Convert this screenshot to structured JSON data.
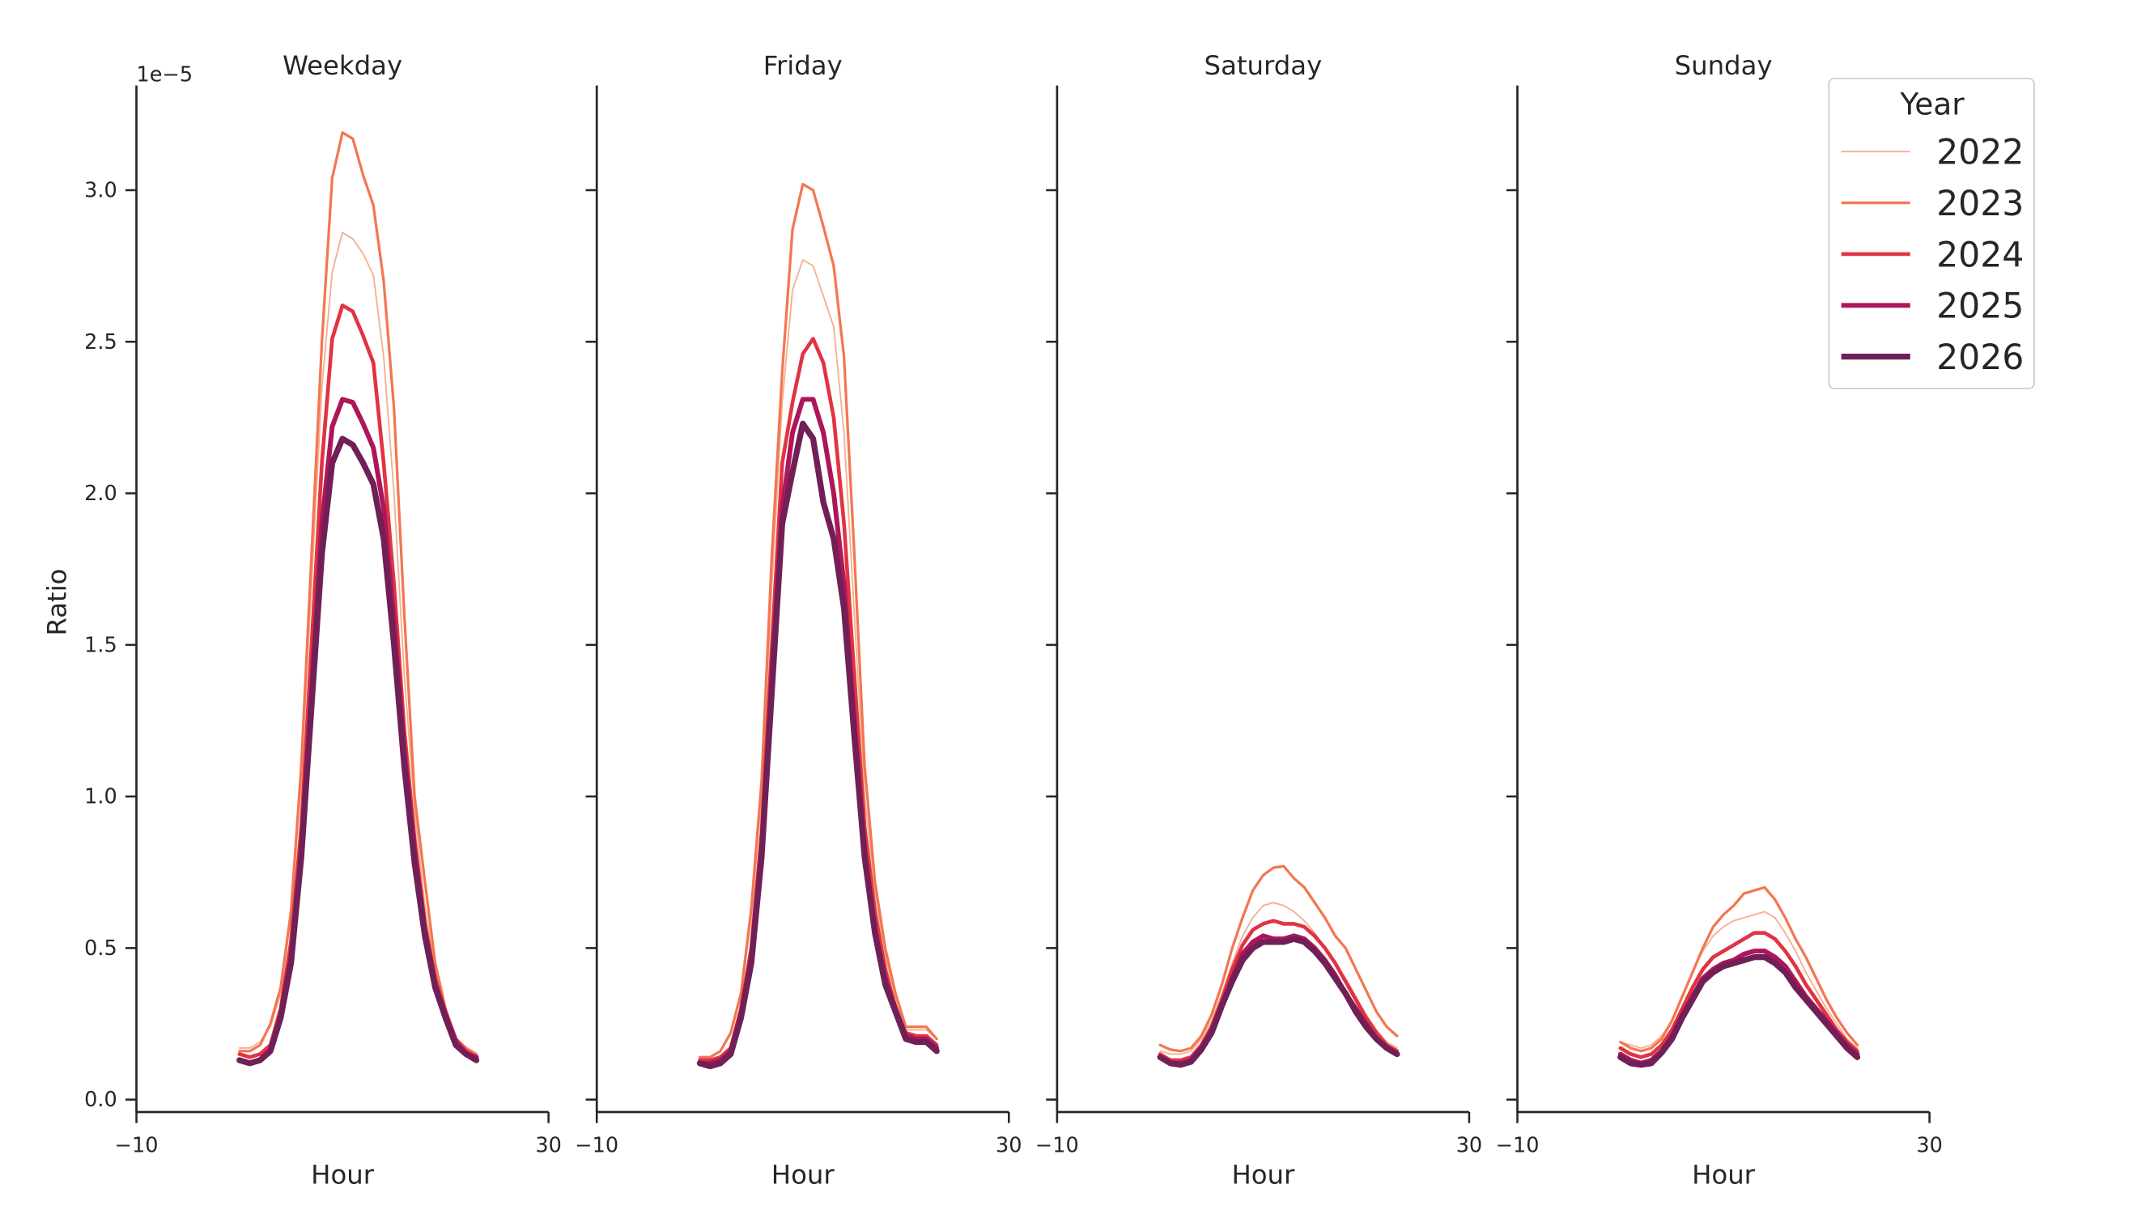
{
  "chart_data": {
    "type": "line",
    "x": [
      0,
      1,
      2,
      3,
      4,
      5,
      6,
      7,
      8,
      9,
      10,
      11,
      12,
      13,
      14,
      15,
      16,
      17,
      18,
      19,
      20,
      21,
      22,
      23
    ],
    "xlabel": "Hour",
    "ylabel": "Ratio",
    "y_offset_text": "1e−5",
    "xlim": [
      -10,
      30
    ],
    "ylim": [
      0,
      3.35
    ],
    "x_ticks": [
      -10,
      30
    ],
    "x_tick_labels": [
      "−10",
      "30"
    ],
    "y_ticks": [
      0,
      0.5,
      1.0,
      1.5,
      2.0,
      2.5,
      3.0
    ],
    "y_tick_labels": [
      "0.0",
      "0.5",
      "1.0",
      "1.5",
      "2.0",
      "2.5",
      "3.0"
    ],
    "grid": false,
    "sharey": true,
    "legend": {
      "title": "Year",
      "placement": "top-right",
      "entries": [
        "2022",
        "2023",
        "2024",
        "2025",
        "2026"
      ]
    },
    "series_style": [
      {
        "name": "2022",
        "color": "#f5b08e",
        "width": 1.1
      },
      {
        "name": "2023",
        "color": "#f37651",
        "width": 1.9
      },
      {
        "name": "2024",
        "color": "#e13342",
        "width": 2.7
      },
      {
        "name": "2025",
        "color": "#ad1759",
        "width": 3.5
      },
      {
        "name": "2026",
        "color": "#701f57",
        "width": 4.3
      }
    ],
    "panels": [
      {
        "title": "Weekday",
        "series": [
          {
            "name": "2022",
            "values": [
              0.17,
              0.17,
              0.19,
              0.24,
              0.35,
              0.6,
              1.05,
              1.7,
              2.35,
              2.73,
              2.86,
              2.84,
              2.79,
              2.72,
              2.45,
              2.0,
              1.4,
              0.95,
              0.64,
              0.43,
              0.3,
              0.2,
              0.17,
              0.15
            ]
          },
          {
            "name": "2023",
            "values": [
              0.16,
              0.16,
              0.18,
              0.25,
              0.37,
              0.62,
              1.1,
              1.8,
              2.5,
              3.04,
              3.19,
              3.17,
              3.05,
              2.95,
              2.7,
              2.28,
              1.6,
              1.0,
              0.72,
              0.45,
              0.3,
              0.2,
              0.17,
              0.15
            ]
          },
          {
            "name": "2024",
            "values": [
              0.15,
              0.14,
              0.15,
              0.18,
              0.3,
              0.52,
              0.9,
              1.5,
              2.1,
              2.51,
              2.62,
              2.6,
              2.52,
              2.43,
              2.1,
              1.7,
              1.22,
              0.86,
              0.58,
              0.4,
              0.29,
              0.2,
              0.16,
              0.14
            ]
          },
          {
            "name": "2025",
            "values": [
              0.13,
              0.12,
              0.13,
              0.16,
              0.28,
              0.47,
              0.82,
              1.35,
              1.9,
              2.22,
              2.31,
              2.3,
              2.23,
              2.15,
              1.95,
              1.58,
              1.15,
              0.82,
              0.56,
              0.38,
              0.28,
              0.19,
              0.15,
              0.14
            ]
          },
          {
            "name": "2026",
            "values": [
              0.13,
              0.12,
              0.13,
              0.16,
              0.27,
              0.45,
              0.8,
              1.3,
              1.8,
              2.1,
              2.18,
              2.16,
              2.1,
              2.03,
              1.85,
              1.5,
              1.1,
              0.78,
              0.54,
              0.37,
              0.27,
              0.18,
              0.15,
              0.13
            ]
          }
        ]
      },
      {
        "title": "Friday",
        "series": [
          {
            "name": "2022",
            "values": [
              0.14,
              0.14,
              0.16,
              0.22,
              0.34,
              0.6,
              1.0,
              1.7,
              2.3,
              2.67,
              2.77,
              2.75,
              2.65,
              2.55,
              2.2,
              1.6,
              1.0,
              0.68,
              0.47,
              0.33,
              0.23,
              0.23,
              0.23,
              0.2
            ]
          },
          {
            "name": "2023",
            "values": [
              0.14,
              0.14,
              0.16,
              0.22,
              0.35,
              0.63,
              1.05,
              1.8,
              2.4,
              2.87,
              3.02,
              3.0,
              2.88,
              2.75,
              2.45,
              1.8,
              1.1,
              0.72,
              0.5,
              0.35,
              0.24,
              0.24,
              0.24,
              0.2
            ]
          },
          {
            "name": "2024",
            "values": [
              0.13,
              0.13,
              0.14,
              0.17,
              0.3,
              0.5,
              0.88,
              1.5,
              2.1,
              2.3,
              2.46,
              2.51,
              2.43,
              2.25,
              1.9,
              1.4,
              0.9,
              0.62,
              0.43,
              0.3,
              0.22,
              0.21,
              0.21,
              0.18
            ]
          },
          {
            "name": "2025",
            "values": [
              0.12,
              0.12,
              0.13,
              0.16,
              0.28,
              0.47,
              0.82,
              1.4,
              1.95,
              2.2,
              2.31,
              2.31,
              2.2,
              2.0,
              1.7,
              1.25,
              0.82,
              0.56,
              0.4,
              0.3,
              0.21,
              0.2,
              0.2,
              0.17
            ]
          },
          {
            "name": "2026",
            "values": [
              0.12,
              0.11,
              0.12,
              0.15,
              0.27,
              0.45,
              0.8,
              1.35,
              1.9,
              2.07,
              2.23,
              2.18,
              1.97,
              1.85,
              1.62,
              1.2,
              0.8,
              0.55,
              0.38,
              0.29,
              0.2,
              0.19,
              0.19,
              0.16
            ]
          }
        ]
      },
      {
        "title": "Saturday",
        "series": [
          {
            "name": "2022",
            "values": [
              0.16,
              0.15,
              0.15,
              0.16,
              0.2,
              0.26,
              0.35,
              0.45,
              0.54,
              0.6,
              0.64,
              0.65,
              0.64,
              0.62,
              0.59,
              0.55,
              0.5,
              0.45,
              0.4,
              0.34,
              0.28,
              0.23,
              0.19,
              0.17
            ]
          },
          {
            "name": "2023",
            "values": [
              0.18,
              0.165,
              0.16,
              0.17,
              0.21,
              0.28,
              0.38,
              0.5,
              0.6,
              0.69,
              0.74,
              0.765,
              0.77,
              0.73,
              0.7,
              0.65,
              0.6,
              0.54,
              0.5,
              0.43,
              0.36,
              0.29,
              0.24,
              0.21
            ]
          },
          {
            "name": "2024",
            "values": [
              0.15,
              0.13,
              0.13,
              0.14,
              0.18,
              0.24,
              0.33,
              0.43,
              0.51,
              0.56,
              0.58,
              0.59,
              0.58,
              0.58,
              0.57,
              0.54,
              0.5,
              0.45,
              0.39,
              0.33,
              0.27,
              0.22,
              0.18,
              0.16
            ]
          },
          {
            "name": "2025",
            "values": [
              0.14,
              0.12,
              0.12,
              0.13,
              0.17,
              0.23,
              0.31,
              0.4,
              0.48,
              0.52,
              0.54,
              0.53,
              0.53,
              0.54,
              0.53,
              0.5,
              0.46,
              0.41,
              0.35,
              0.3,
              0.25,
              0.2,
              0.17,
              0.15
            ]
          },
          {
            "name": "2026",
            "values": [
              0.14,
              0.12,
              0.115,
              0.125,
              0.165,
              0.22,
              0.31,
              0.39,
              0.46,
              0.5,
              0.52,
              0.52,
              0.52,
              0.53,
              0.52,
              0.49,
              0.45,
              0.4,
              0.35,
              0.29,
              0.24,
              0.2,
              0.17,
              0.15
            ]
          }
        ]
      },
      {
        "title": "Sunday",
        "series": [
          {
            "name": "2022",
            "values": [
              0.19,
              0.18,
              0.17,
              0.18,
              0.21,
              0.26,
              0.34,
              0.42,
              0.49,
              0.54,
              0.57,
              0.59,
              0.6,
              0.61,
              0.62,
              0.6,
              0.55,
              0.49,
              0.42,
              0.36,
              0.3,
              0.25,
              0.2,
              0.17
            ]
          },
          {
            "name": "2023",
            "values": [
              0.19,
              0.17,
              0.16,
              0.17,
              0.2,
              0.26,
              0.34,
              0.42,
              0.5,
              0.57,
              0.61,
              0.64,
              0.68,
              0.69,
              0.7,
              0.66,
              0.6,
              0.53,
              0.47,
              0.4,
              0.33,
              0.27,
              0.22,
              0.18
            ]
          },
          {
            "name": "2024",
            "values": [
              0.17,
              0.15,
              0.14,
              0.15,
              0.18,
              0.23,
              0.3,
              0.37,
              0.43,
              0.47,
              0.49,
              0.51,
              0.53,
              0.55,
              0.55,
              0.53,
              0.49,
              0.44,
              0.38,
              0.33,
              0.28,
              0.23,
              0.19,
              0.16
            ]
          },
          {
            "name": "2025",
            "values": [
              0.15,
              0.13,
              0.12,
              0.13,
              0.16,
              0.21,
              0.28,
              0.34,
              0.4,
              0.43,
              0.45,
              0.46,
              0.48,
              0.49,
              0.49,
              0.47,
              0.44,
              0.39,
              0.34,
              0.3,
              0.26,
              0.22,
              0.18,
              0.15
            ]
          },
          {
            "name": "2026",
            "values": [
              0.14,
              0.12,
              0.115,
              0.12,
              0.155,
              0.2,
              0.27,
              0.33,
              0.39,
              0.42,
              0.44,
              0.45,
              0.46,
              0.47,
              0.47,
              0.45,
              0.42,
              0.37,
              0.33,
              0.29,
              0.25,
              0.21,
              0.17,
              0.14
            ]
          }
        ]
      }
    ]
  }
}
